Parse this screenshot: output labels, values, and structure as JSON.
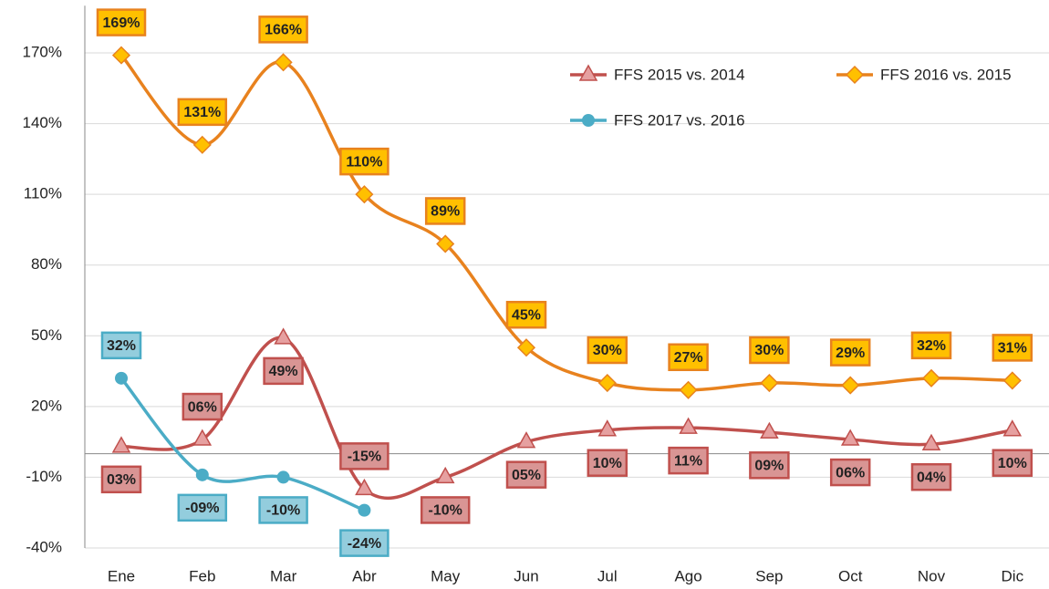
{
  "chart_data": {
    "type": "line",
    "categories": [
      "Ene",
      "Feb",
      "Mar",
      "Abr",
      "May",
      "Jun",
      "Jul",
      "Ago",
      "Sep",
      "Oct",
      "Nov",
      "Dic"
    ],
    "series": [
      {
        "name": "FFS 2015 vs. 2014",
        "color": "#c0504d",
        "marker_fill": "#e6a0a0",
        "label_fill": "#d99594",
        "values": [
          3,
          6,
          49,
          -15,
          -10,
          5,
          10,
          11,
          9,
          6,
          4,
          10
        ],
        "value_labels": [
          "03%",
          "06%",
          "49%",
          "-15%",
          "-10%",
          "05%",
          "10%",
          "11%",
          "09%",
          "06%",
          "04%",
          "10%"
        ]
      },
      {
        "name": "FFS 2016 vs. 2015",
        "color": "#e8821e",
        "marker_fill": "#ffc000",
        "label_fill": "#ffc000",
        "values": [
          169,
          131,
          166,
          110,
          89,
          45,
          30,
          27,
          30,
          29,
          32,
          31
        ],
        "value_labels": [
          "169%",
          "131%",
          "166%",
          "110%",
          "89%",
          "45%",
          "30%",
          "27%",
          "30%",
          "29%",
          "32%",
          "31%"
        ]
      },
      {
        "name": "FFS 2017 vs. 2016",
        "color": "#4bacc6",
        "marker_fill": "#4bacc6",
        "label_fill": "#93cddd",
        "values": [
          32,
          -9,
          -10,
          -24,
          null,
          null,
          null,
          null,
          null,
          null,
          null,
          null
        ],
        "value_labels": [
          "32%",
          "-09%",
          "-10%",
          "-24%",
          null,
          null,
          null,
          null,
          null,
          null,
          null,
          null
        ]
      }
    ],
    "ylim": [
      -40,
      190
    ],
    "yticks": [
      {
        "value": -40,
        "label": "-40%"
      },
      {
        "value": -10,
        "label": "-10%"
      },
      {
        "value": 20,
        "label": "20%"
      },
      {
        "value": 50,
        "label": "50%"
      },
      {
        "value": 80,
        "label": "80%"
      },
      {
        "value": 110,
        "label": "110%"
      },
      {
        "value": 140,
        "label": "140%"
      },
      {
        "value": 170,
        "label": "170%"
      }
    ],
    "grid": true,
    "legend": "top-right",
    "smooth": true
  }
}
